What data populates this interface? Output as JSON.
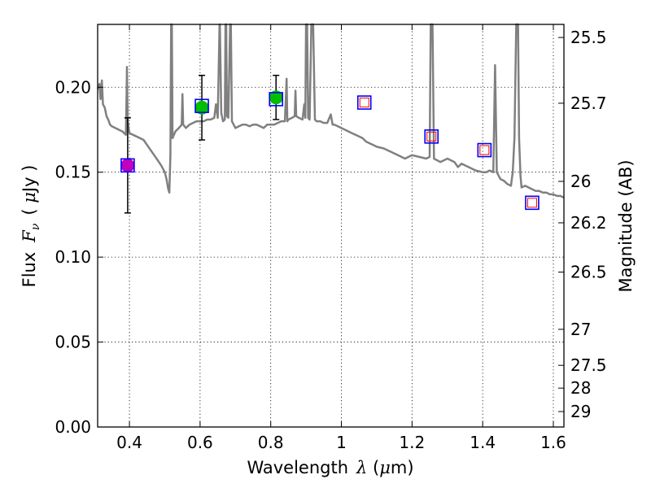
{
  "chart_data": {
    "type": "scatter",
    "xlabel": "Wavelength  λ (μm)",
    "xlabel_parts": {
      "text": "Wavelength",
      "symbol": "λ",
      "unit_open": " (",
      "unit_mu": "μ",
      "unit_rest": "m)"
    },
    "ylabel": "Flux  Fν  ( μJy )",
    "ylabel_parts": {
      "text": "Flux",
      "symbol": "F",
      "subscript": "ν",
      "unit_open": "( ",
      "unit_mu": "μ",
      "unit_rest": "Jy )"
    },
    "y2label": "Magnitude (AB)",
    "xlim": [
      0.31,
      1.63
    ],
    "ylim": [
      0.0,
      0.237
    ],
    "grid": true,
    "x_ticks": [
      {
        "v": 0.4,
        "label": "0.4"
      },
      {
        "v": 0.6,
        "label": "0.6"
      },
      {
        "v": 0.8,
        "label": "0.8"
      },
      {
        "v": 1.0,
        "label": "1"
      },
      {
        "v": 1.2,
        "label": "1.2"
      },
      {
        "v": 1.4,
        "label": "1.4"
      },
      {
        "v": 1.6,
        "label": "1.6"
      }
    ],
    "y_ticks": [
      {
        "v": 0.0,
        "label": "0.00"
      },
      {
        "v": 0.05,
        "label": "0.05"
      },
      {
        "v": 0.1,
        "label": "0.10"
      },
      {
        "v": 0.15,
        "label": "0.15"
      },
      {
        "v": 0.2,
        "label": "0.20"
      }
    ],
    "mag_ticks": [
      {
        "flux": 0.2293,
        "label": "25.5"
      },
      {
        "flux": 0.1906,
        "label": "25.7"
      },
      {
        "flux": 0.1446,
        "label": "26"
      },
      {
        "flux": 0.1202,
        "label": "26.2"
      },
      {
        "flux": 0.0912,
        "label": "26.5"
      },
      {
        "flux": 0.0575,
        "label": "27"
      },
      {
        "flux": 0.0363,
        "label": "27.5"
      },
      {
        "flux": 0.0229,
        "label": "28"
      },
      {
        "flux": 0.0091,
        "label": "29"
      }
    ],
    "model_spectrum": {
      "color": "#808080",
      "points": [
        [
          0.31,
          0.199
        ],
        [
          0.315,
          0.202
        ],
        [
          0.318,
          0.193
        ],
        [
          0.322,
          0.204
        ],
        [
          0.325,
          0.19
        ],
        [
          0.33,
          0.188
        ],
        [
          0.335,
          0.183
        ],
        [
          0.34,
          0.181
        ],
        [
          0.345,
          0.178
        ],
        [
          0.35,
          0.177
        ],
        [
          0.36,
          0.176
        ],
        [
          0.37,
          0.175
        ],
        [
          0.38,
          0.174
        ],
        [
          0.385,
          0.173
        ],
        [
          0.39,
          0.172
        ],
        [
          0.392,
          0.197
        ],
        [
          0.393,
          0.212
        ],
        [
          0.395,
          0.18
        ],
        [
          0.4,
          0.173
        ],
        [
          0.41,
          0.172
        ],
        [
          0.42,
          0.171
        ],
        [
          0.43,
          0.17
        ],
        [
          0.44,
          0.169
        ],
        [
          0.45,
          0.166
        ],
        [
          0.46,
          0.163
        ],
        [
          0.47,
          0.16
        ],
        [
          0.48,
          0.157
        ],
        [
          0.49,
          0.154
        ],
        [
          0.5,
          0.15
        ],
        [
          0.505,
          0.146
        ],
        [
          0.51,
          0.14
        ],
        [
          0.513,
          0.138
        ],
        [
          0.516,
          0.16
        ],
        [
          0.518,
          0.237
        ],
        [
          0.52,
          0.237
        ],
        [
          0.522,
          0.17
        ],
        [
          0.53,
          0.174
        ],
        [
          0.54,
          0.176
        ],
        [
          0.548,
          0.178
        ],
        [
          0.55,
          0.196
        ],
        [
          0.552,
          0.178
        ],
        [
          0.56,
          0.176
        ],
        [
          0.57,
          0.178
        ],
        [
          0.58,
          0.179
        ],
        [
          0.59,
          0.18
        ],
        [
          0.6,
          0.18
        ],
        [
          0.61,
          0.18
        ],
        [
          0.62,
          0.181
        ],
        [
          0.63,
          0.181
        ],
        [
          0.64,
          0.182
        ],
        [
          0.645,
          0.19
        ],
        [
          0.65,
          0.182
        ],
        [
          0.655,
          0.237
        ],
        [
          0.656,
          0.237
        ],
        [
          0.66,
          0.185
        ],
        [
          0.665,
          0.18
        ],
        [
          0.67,
          0.181
        ],
        [
          0.672,
          0.237
        ],
        [
          0.674,
          0.237
        ],
        [
          0.676,
          0.183
        ],
        [
          0.68,
          0.182
        ],
        [
          0.685,
          0.237
        ],
        [
          0.687,
          0.237
        ],
        [
          0.69,
          0.18
        ],
        [
          0.7,
          0.176
        ],
        [
          0.71,
          0.177
        ],
        [
          0.72,
          0.178
        ],
        [
          0.73,
          0.178
        ],
        [
          0.74,
          0.177
        ],
        [
          0.75,
          0.178
        ],
        [
          0.76,
          0.178
        ],
        [
          0.77,
          0.177
        ],
        [
          0.78,
          0.176
        ],
        [
          0.79,
          0.178
        ],
        [
          0.8,
          0.178
        ],
        [
          0.81,
          0.178
        ],
        [
          0.82,
          0.179
        ],
        [
          0.83,
          0.18
        ],
        [
          0.84,
          0.18
        ],
        [
          0.845,
          0.205
        ],
        [
          0.847,
          0.18
        ],
        [
          0.85,
          0.181
        ],
        [
          0.86,
          0.182
        ],
        [
          0.868,
          0.183
        ],
        [
          0.87,
          0.198
        ],
        [
          0.872,
          0.183
        ],
        [
          0.88,
          0.182
        ],
        [
          0.89,
          0.181
        ],
        [
          0.895,
          0.19
        ],
        [
          0.898,
          0.182
        ],
        [
          0.9,
          0.237
        ],
        [
          0.903,
          0.237
        ],
        [
          0.906,
          0.182
        ],
        [
          0.91,
          0.181
        ],
        [
          0.915,
          0.237
        ],
        [
          0.92,
          0.237
        ],
        [
          0.925,
          0.181
        ],
        [
          0.93,
          0.18
        ],
        [
          0.94,
          0.18
        ],
        [
          0.95,
          0.179
        ],
        [
          0.96,
          0.179
        ],
        [
          0.97,
          0.184
        ],
        [
          0.975,
          0.178
        ],
        [
          0.98,
          0.178
        ],
        [
          0.99,
          0.177
        ],
        [
          1.0,
          0.176
        ],
        [
          1.01,
          0.175
        ],
        [
          1.02,
          0.174
        ],
        [
          1.03,
          0.173
        ],
        [
          1.04,
          0.172
        ],
        [
          1.05,
          0.171
        ],
        [
          1.06,
          0.17
        ],
        [
          1.07,
          0.168
        ],
        [
          1.08,
          0.167
        ],
        [
          1.09,
          0.166
        ],
        [
          1.1,
          0.165
        ],
        [
          1.12,
          0.164
        ],
        [
          1.14,
          0.162
        ],
        [
          1.16,
          0.16
        ],
        [
          1.18,
          0.158
        ],
        [
          1.2,
          0.16
        ],
        [
          1.22,
          0.159
        ],
        [
          1.24,
          0.158
        ],
        [
          1.25,
          0.159
        ],
        [
          1.253,
          0.237
        ],
        [
          1.258,
          0.237
        ],
        [
          1.262,
          0.158
        ],
        [
          1.28,
          0.156
        ],
        [
          1.3,
          0.158
        ],
        [
          1.32,
          0.156
        ],
        [
          1.33,
          0.153
        ],
        [
          1.34,
          0.155
        ],
        [
          1.36,
          0.153
        ],
        [
          1.38,
          0.151
        ],
        [
          1.4,
          0.15
        ],
        [
          1.41,
          0.15
        ],
        [
          1.42,
          0.151
        ],
        [
          1.43,
          0.15
        ],
        [
          1.435,
          0.213
        ],
        [
          1.44,
          0.15
        ],
        [
          1.45,
          0.146
        ],
        [
          1.46,
          0.145
        ],
        [
          1.47,
          0.143
        ],
        [
          1.48,
          0.142
        ],
        [
          1.485,
          0.15
        ],
        [
          1.49,
          0.17
        ],
        [
          1.495,
          0.237
        ],
        [
          1.5,
          0.237
        ],
        [
          1.503,
          0.17
        ],
        [
          1.507,
          0.148
        ],
        [
          1.51,
          0.141
        ],
        [
          1.52,
          0.142
        ],
        [
          1.53,
          0.141
        ],
        [
          1.54,
          0.14
        ],
        [
          1.55,
          0.139
        ],
        [
          1.56,
          0.139
        ],
        [
          1.57,
          0.138
        ],
        [
          1.58,
          0.138
        ],
        [
          1.59,
          0.137
        ],
        [
          1.6,
          0.137
        ],
        [
          1.61,
          0.136
        ],
        [
          1.62,
          0.136
        ],
        [
          1.63,
          0.135
        ]
      ]
    },
    "model_photometry": {
      "marker": "square",
      "edge_color": "#0000ff",
      "points": [
        {
          "x": 0.395,
          "y": 0.154
        },
        {
          "x": 0.605,
          "y": 0.189
        },
        {
          "x": 0.815,
          "y": 0.193
        },
        {
          "x": 1.065,
          "y": 0.191
        },
        {
          "x": 1.255,
          "y": 0.171
        },
        {
          "x": 1.405,
          "y": 0.163
        },
        {
          "x": 1.54,
          "y": 0.132
        }
      ]
    },
    "observed": {
      "points": [
        {
          "x": 0.395,
          "y": 0.154,
          "err": 0.028,
          "color": "#bf00bf"
        },
        {
          "x": 0.605,
          "y": 0.188,
          "err": 0.019,
          "color": "#00bf00"
        },
        {
          "x": 0.815,
          "y": 0.194,
          "err": 0.013,
          "color": "#00bf00"
        }
      ]
    },
    "limits": {
      "marker": "open-square",
      "edge_color": "#ff0000",
      "points": [
        {
          "x": 1.065,
          "y": 0.191
        },
        {
          "x": 1.255,
          "y": 0.171
        },
        {
          "x": 1.405,
          "y": 0.163
        },
        {
          "x": 1.54,
          "y": 0.132
        }
      ]
    }
  }
}
